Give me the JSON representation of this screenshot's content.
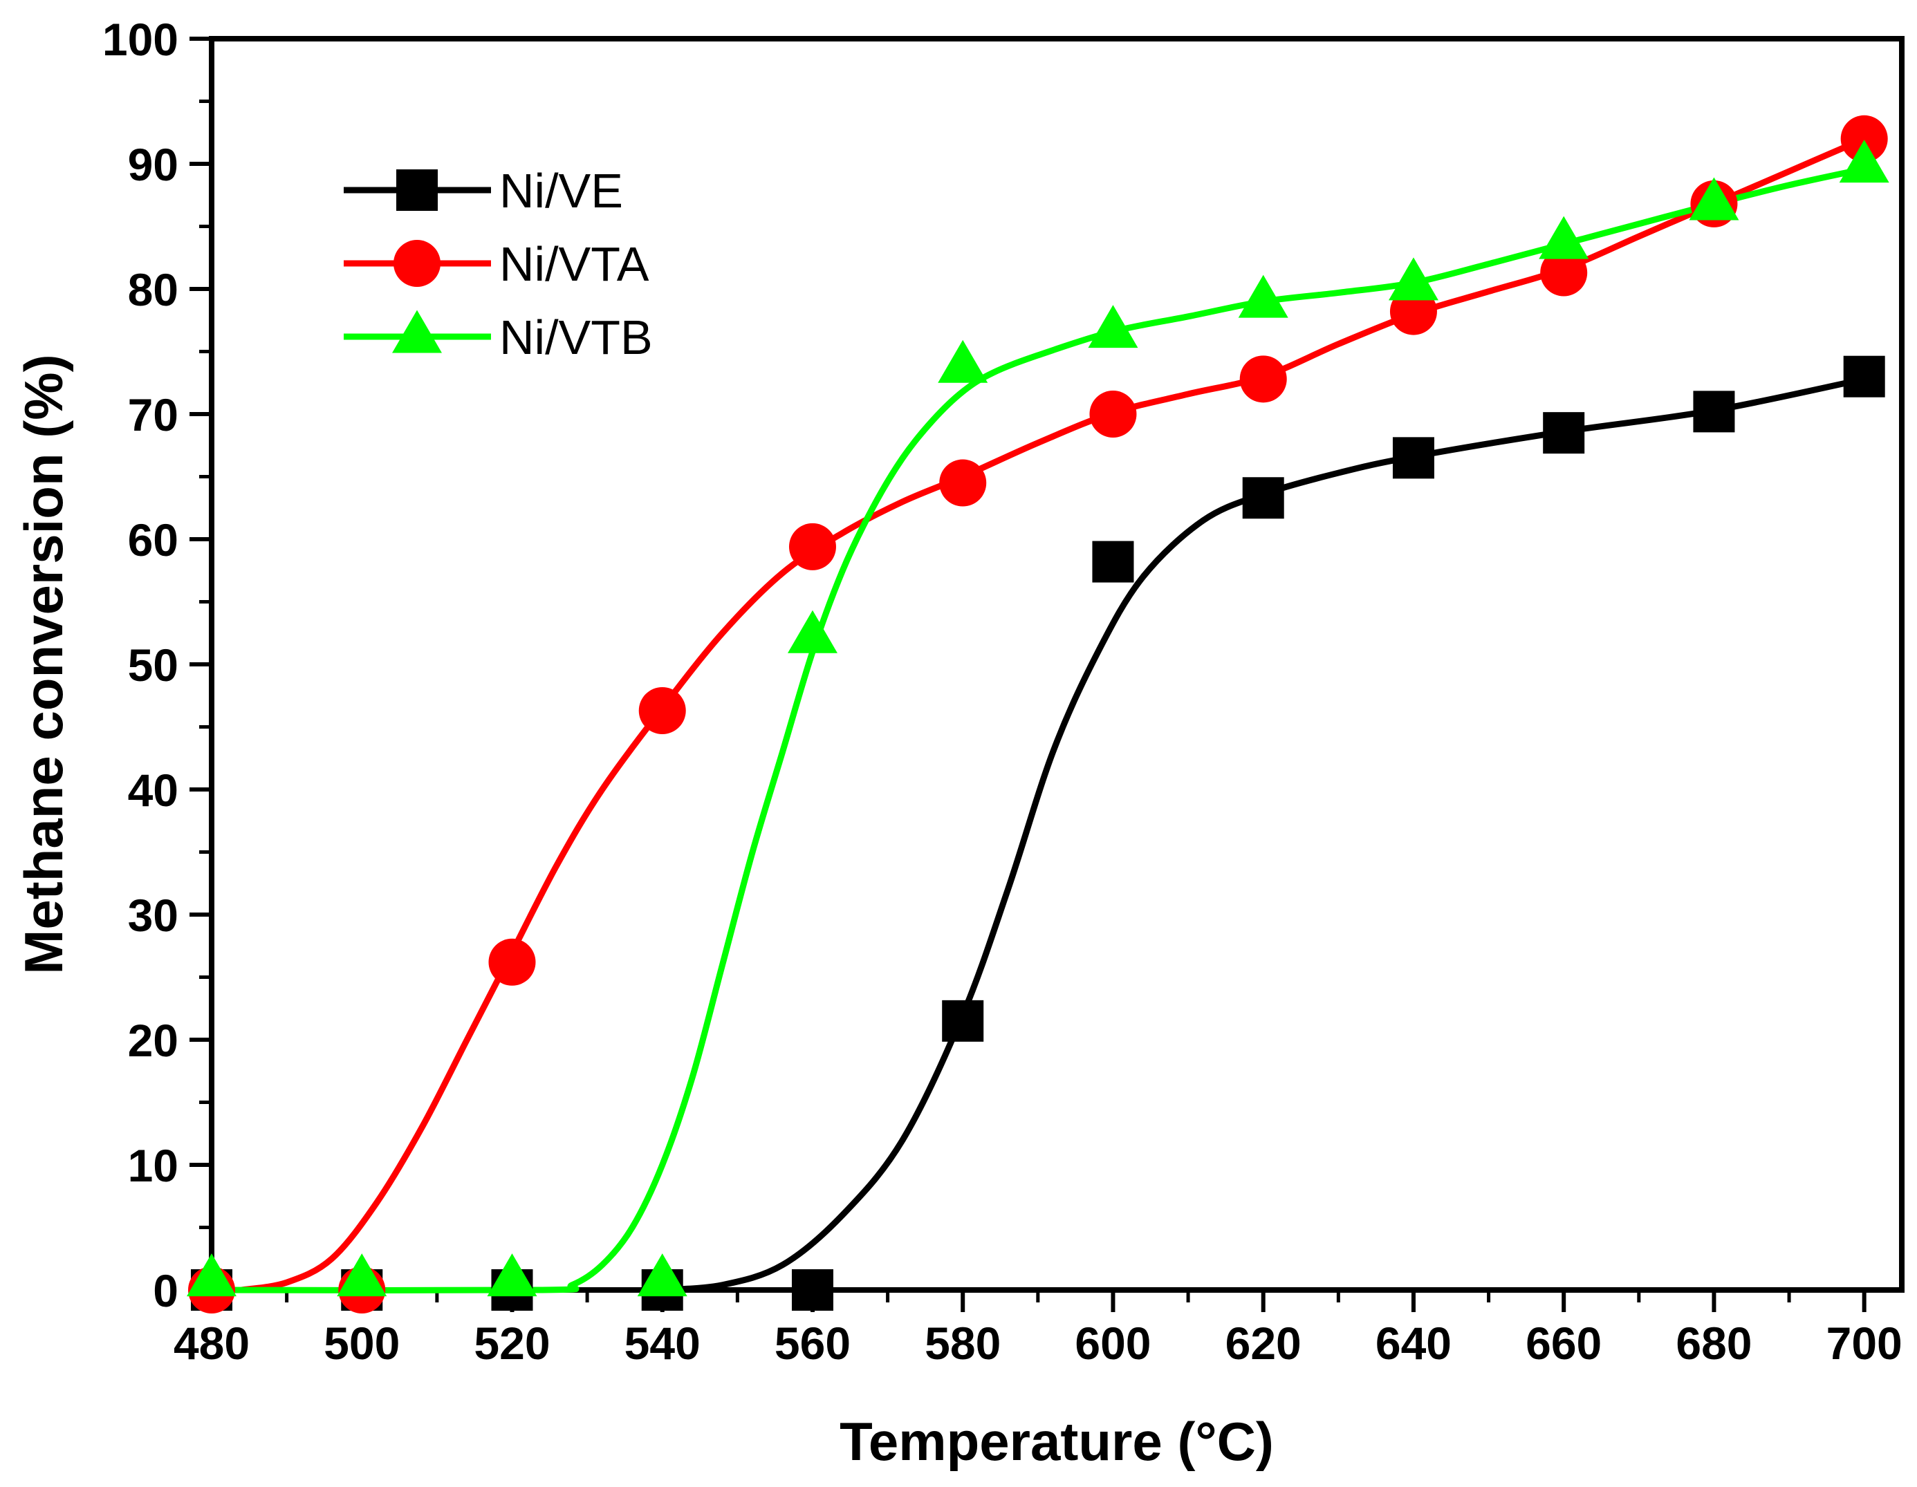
{
  "chart_data": {
    "type": "line",
    "title": "",
    "xlabel": "Temperature (°C)",
    "ylabel": "Methane conversion (%)",
    "xlim": [
      480,
      705
    ],
    "ylim": [
      0,
      100
    ],
    "x_ticks": [
      480,
      500,
      520,
      540,
      560,
      580,
      600,
      620,
      640,
      660,
      680,
      700
    ],
    "y_ticks": [
      0,
      10,
      20,
      30,
      40,
      50,
      60,
      70,
      80,
      90,
      100
    ],
    "legend_position": "top-left",
    "series": [
      {
        "name": "Ni/VE",
        "color": "#000000",
        "marker": "square",
        "x": [
          480,
          500,
          520,
          540,
          560,
          580,
          600,
          620,
          640,
          660,
          680,
          700
        ],
        "values": [
          0,
          0,
          0,
          0,
          0,
          21.5,
          58.2,
          63.3,
          66.5,
          68.5,
          70.2,
          73.0
        ],
        "fit_curve": [
          [
            540,
            0
          ],
          [
            548,
            0.4
          ],
          [
            556,
            2
          ],
          [
            564,
            6
          ],
          [
            572,
            12
          ],
          [
            580,
            22
          ],
          [
            586,
            32
          ],
          [
            592,
            43
          ],
          [
            598,
            51
          ],
          [
            604,
            57
          ],
          [
            612,
            61.5
          ],
          [
            620,
            63.6
          ],
          [
            630,
            65.3
          ],
          [
            640,
            66.6
          ],
          [
            660,
            68.6
          ],
          [
            680,
            70.3
          ],
          [
            700,
            72.8
          ]
        ]
      },
      {
        "name": "Ni/VTA",
        "color": "#ff0000",
        "marker": "circle",
        "x": [
          480,
          500,
          520,
          540,
          560,
          580,
          600,
          620,
          640,
          660,
          680,
          700
        ],
        "values": [
          0,
          0,
          26.2,
          46.3,
          59.4,
          64.5,
          70.0,
          72.8,
          78.2,
          81.3,
          86.8,
          92.0
        ],
        "fit_curve": [
          [
            484,
            0
          ],
          [
            490,
            0.6
          ],
          [
            496,
            2.5
          ],
          [
            502,
            7
          ],
          [
            508,
            13
          ],
          [
            514,
            20
          ],
          [
            520,
            27
          ],
          [
            526,
            34
          ],
          [
            532,
            40
          ],
          [
            540,
            46.5
          ],
          [
            548,
            52.5
          ],
          [
            556,
            57.3
          ],
          [
            564,
            60.5
          ],
          [
            572,
            63
          ],
          [
            580,
            65
          ],
          [
            590,
            67.7
          ],
          [
            600,
            70.1
          ],
          [
            610,
            71.6
          ],
          [
            620,
            73
          ],
          [
            630,
            75.6
          ],
          [
            640,
            78
          ],
          [
            650,
            79.8
          ],
          [
            660,
            81.6
          ],
          [
            670,
            84.2
          ],
          [
            680,
            86.8
          ],
          [
            690,
            89.4
          ],
          [
            700,
            92
          ]
        ]
      },
      {
        "name": "Ni/VTB",
        "color": "#00ff00",
        "marker": "triangle",
        "x": [
          480,
          500,
          520,
          540,
          560,
          580,
          600,
          620,
          640,
          660,
          680,
          700
        ],
        "values": [
          0.8,
          0.8,
          0.8,
          0.8,
          52.2,
          73.8,
          76.6,
          79.0,
          80.4,
          83.7,
          86.8,
          89.8
        ],
        "fit_curve": [
          [
            480,
            0
          ],
          [
            524,
            0
          ],
          [
            528,
            0.4
          ],
          [
            532,
            2
          ],
          [
            536,
            5
          ],
          [
            540,
            10
          ],
          [
            544,
            17
          ],
          [
            548,
            26
          ],
          [
            552,
            35
          ],
          [
            556,
            43
          ],
          [
            560,
            51
          ],
          [
            564,
            57.5
          ],
          [
            568,
            62.5
          ],
          [
            572,
            66.5
          ],
          [
            576,
            69.5
          ],
          [
            580,
            71.8
          ],
          [
            584,
            73.3
          ],
          [
            590,
            74.7
          ],
          [
            600,
            76.6
          ],
          [
            610,
            77.8
          ],
          [
            620,
            79
          ],
          [
            630,
            79.7
          ],
          [
            640,
            80.5
          ],
          [
            650,
            82
          ],
          [
            660,
            83.6
          ],
          [
            670,
            85.2
          ],
          [
            680,
            86.8
          ],
          [
            690,
            88.3
          ],
          [
            700,
            89.6
          ]
        ]
      }
    ]
  }
}
